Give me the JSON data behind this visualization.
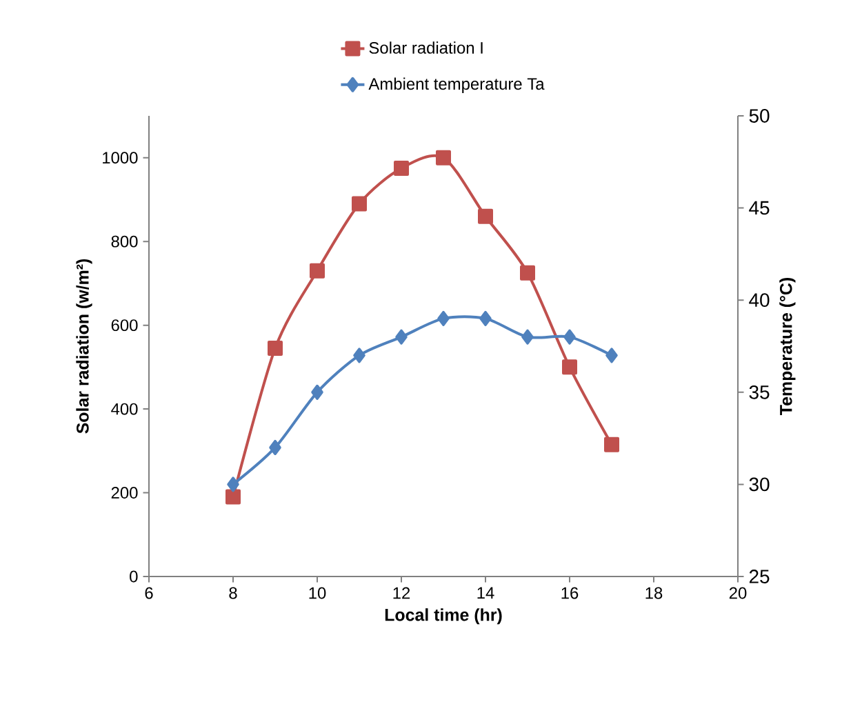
{
  "chart_data": {
    "type": "line",
    "xlabel": "Local time (hr)",
    "ylabel": "Solar radiation (w/m²)",
    "y2label": "Temperature (°C)",
    "x": [
      8,
      9,
      10,
      11,
      12,
      13,
      14,
      15,
      16,
      17
    ],
    "series": [
      {
        "name": "Solar radiation I",
        "color": "#c0504d",
        "marker": "square",
        "values": [
          190,
          545,
          730,
          890,
          975,
          1000,
          860,
          725,
          500,
          315
        ]
      },
      {
        "name": "Ambient temperature Ta",
        "color": "#4f81bd",
        "marker": "diamond",
        "axis": "y2",
        "values": [
          30,
          32,
          35,
          37,
          38,
          39,
          39,
          38,
          38,
          37
        ]
      }
    ],
    "xlim": [
      6,
      20
    ],
    "xticks": [
      6,
      8,
      10,
      12,
      14,
      16,
      18,
      20
    ],
    "ylim": [
      0,
      1100
    ],
    "yticks": [
      0,
      200,
      400,
      600,
      800,
      1000
    ],
    "y2lim": [
      25,
      50
    ],
    "y2ticks": [
      25,
      30,
      35,
      40,
      45,
      50
    ],
    "grid": false,
    "legend": "top"
  }
}
